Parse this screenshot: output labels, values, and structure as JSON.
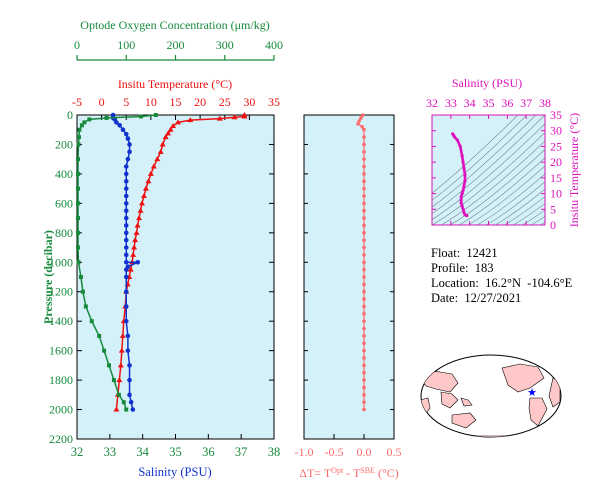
{
  "float_info": {
    "float_line": "Float:  12421",
    "profile_line": "Profile:  183",
    "location_line": "Location:  16.2°N  -104.6°E",
    "date_line": "Date:  12/27/2021"
  },
  "colors": {
    "oxygen": "#168a3a",
    "temperature": "#ee1111",
    "salinity": "#1133cc",
    "delta_t": "#ff6a6a",
    "ts_panel": "#dd11bb",
    "panel_fill": "#d4f1f9",
    "map_land": "#ffc8c8"
  },
  "chart_data": [
    {
      "type": "line",
      "title": "",
      "ylabel": "Pressure (decibar)",
      "y_ticks": [
        "0",
        "200",
        "400",
        "600",
        "800",
        "1000",
        "1200",
        "1400",
        "1600",
        "1800",
        "2000",
        "2200"
      ],
      "ylim": [
        0,
        2200
      ],
      "y_reversed": true,
      "grid": false,
      "axes": {
        "salinity": {
          "label": "Salinity (PSU)",
          "position": "bottom",
          "ticks": [
            "32",
            "33",
            "34",
            "35",
            "36",
            "37",
            "38"
          ],
          "range": [
            32,
            38
          ]
        },
        "temperature": {
          "label": "Insitu Temperature (°C)",
          "position": "top",
          "ticks": [
            "-5",
            "0",
            "5",
            "10",
            "15",
            "20",
            "25",
            "30",
            "35"
          ],
          "range": [
            -5,
            35
          ]
        },
        "oxygen": {
          "label": "Optode Oxygen Concentration (μm/kg)",
          "position": "top (outer)",
          "ticks": [
            "0",
            "100",
            "200",
            "300",
            "400"
          ],
          "range": [
            0,
            400
          ]
        }
      },
      "series": [
        {
          "axis": "temperature",
          "marker": "triangle",
          "color": "#ee1111",
          "points": [
            [
              29.0,
              0
            ],
            [
              29.0,
              10
            ],
            [
              27.0,
              15
            ],
            [
              24.0,
              25
            ],
            [
              18.0,
              35
            ],
            [
              15.5,
              50
            ],
            [
              14.5,
              75
            ],
            [
              14.0,
              100
            ],
            [
              13.5,
              125
            ],
            [
              13.0,
              150
            ],
            [
              12.4,
              200
            ],
            [
              12.0,
              250
            ],
            [
              11.3,
              300
            ],
            [
              10.6,
              350
            ],
            [
              10.0,
              400
            ],
            [
              9.5,
              450
            ],
            [
              9.0,
              500
            ],
            [
              8.6,
              550
            ],
            [
              8.2,
              600
            ],
            [
              7.9,
              650
            ],
            [
              7.6,
              700
            ],
            [
              7.3,
              750
            ],
            [
              7.1,
              800
            ],
            [
              6.8,
              850
            ],
            [
              6.6,
              900
            ],
            [
              6.4,
              950
            ],
            [
              6.2,
              1000
            ],
            [
              5.9,
              1050
            ],
            [
              5.6,
              1100
            ],
            [
              5.3,
              1150
            ],
            [
              5.0,
              1200
            ],
            [
              4.8,
              1300
            ],
            [
              4.5,
              1400
            ],
            [
              4.3,
              1500
            ],
            [
              4.1,
              1600
            ],
            [
              3.9,
              1700
            ],
            [
              3.6,
              1800
            ],
            [
              3.3,
              1900
            ],
            [
              3.0,
              2000
            ]
          ]
        },
        {
          "axis": "salinity",
          "marker": "circle",
          "color": "#1133cc",
          "points": [
            [
              33.1,
              0
            ],
            [
              33.1,
              10
            ],
            [
              33.1,
              20
            ],
            [
              33.15,
              30
            ],
            [
              33.2,
              50
            ],
            [
              33.3,
              70
            ],
            [
              33.4,
              100
            ],
            [
              33.5,
              130
            ],
            [
              33.55,
              160
            ],
            [
              33.6,
              200
            ],
            [
              33.6,
              250
            ],
            [
              33.55,
              300
            ],
            [
              33.5,
              350
            ],
            [
              33.5,
              400
            ],
            [
              33.5,
              450
            ],
            [
              33.5,
              500
            ],
            [
              33.5,
              550
            ],
            [
              33.5,
              600
            ],
            [
              33.5,
              650
            ],
            [
              33.5,
              700
            ],
            [
              33.5,
              750
            ],
            [
              33.5,
              800
            ],
            [
              33.5,
              850
            ],
            [
              33.5,
              900
            ],
            [
              33.5,
              950
            ],
            [
              33.5,
              1000
            ],
            [
              33.85,
              1000
            ],
            [
              33.55,
              1030
            ],
            [
              33.5,
              1050
            ],
            [
              33.5,
              1100
            ],
            [
              33.5,
              1200
            ],
            [
              33.5,
              1300
            ],
            [
              33.5,
              1400
            ],
            [
              33.55,
              1500
            ],
            [
              33.55,
              1600
            ],
            [
              33.6,
              1700
            ],
            [
              33.6,
              1800
            ],
            [
              33.6,
              1900
            ],
            [
              33.65,
              1950
            ],
            [
              33.7,
              2000
            ]
          ]
        },
        {
          "axis": "oxygen",
          "marker": "square",
          "color": "#168a3a",
          "points": [
            [
              160,
              0
            ],
            [
              130,
              10
            ],
            [
              60,
              20
            ],
            [
              25,
              30
            ],
            [
              15,
              50
            ],
            [
              10,
              70
            ],
            [
              5,
              100
            ],
            [
              4,
              150
            ],
            [
              3,
              200
            ],
            [
              2,
              300
            ],
            [
              2,
              400
            ],
            [
              2,
              500
            ],
            [
              2,
              600
            ],
            [
              2,
              700
            ],
            [
              2,
              800
            ],
            [
              2,
              900
            ],
            [
              3,
              1000
            ],
            [
              8,
              1100
            ],
            [
              12,
              1200
            ],
            [
              18,
              1300
            ],
            [
              30,
              1400
            ],
            [
              45,
              1500
            ],
            [
              55,
              1600
            ],
            [
              65,
              1700
            ],
            [
              75,
              1800
            ],
            [
              85,
              1900
            ],
            [
              95,
              1950
            ],
            [
              100,
              2000
            ]
          ]
        }
      ]
    },
    {
      "type": "line",
      "xlabel": "ΔT= T^Opt - T^SBE (°C)",
      "x_ticks": [
        "-1.0",
        "-0.5",
        "0.0",
        "0.5"
      ],
      "xlim": [
        -1.0,
        0.5
      ],
      "ylim": [
        0,
        2200
      ],
      "y_reversed": true,
      "series": [
        {
          "name": "ΔT",
          "marker": "circle",
          "color": "#ff6a6a",
          "points": [
            [
              -0.02,
              0
            ],
            [
              -0.05,
              20
            ],
            [
              -0.08,
              40
            ],
            [
              -0.1,
              60
            ],
            [
              -0.03,
              80
            ],
            [
              0.0,
              100
            ],
            [
              0.0,
              150
            ],
            [
              0.0,
              200
            ],
            [
              0.0,
              250
            ],
            [
              0.0,
              300
            ],
            [
              0.0,
              350
            ],
            [
              0.0,
              400
            ],
            [
              0.0,
              450
            ],
            [
              0.0,
              500
            ],
            [
              0.0,
              550
            ],
            [
              0.0,
              600
            ],
            [
              0.0,
              650
            ],
            [
              0.0,
              700
            ],
            [
              0.0,
              750
            ],
            [
              0.0,
              800
            ],
            [
              0.0,
              850
            ],
            [
              0.0,
              900
            ],
            [
              0.0,
              950
            ],
            [
              0.0,
              1000
            ],
            [
              0.0,
              1050
            ],
            [
              0.0,
              1100
            ],
            [
              0.0,
              1150
            ],
            [
              0.0,
              1200
            ],
            [
              0.0,
              1250
            ],
            [
              0.0,
              1300
            ],
            [
              0.0,
              1350
            ],
            [
              0.0,
              1400
            ],
            [
              0.0,
              1450
            ],
            [
              0.0,
              1500
            ],
            [
              0.0,
              1550
            ],
            [
              0.0,
              1600
            ],
            [
              0.0,
              1650
            ],
            [
              0.0,
              1700
            ],
            [
              0.0,
              1750
            ],
            [
              0.0,
              1800
            ],
            [
              0.0,
              1850
            ],
            [
              0.0,
              1900
            ],
            [
              0.0,
              1950
            ],
            [
              0.0,
              2000
            ]
          ]
        }
      ]
    },
    {
      "type": "scatter",
      "title": "Salinity (PSU)",
      "xlabel": "Salinity (PSU)",
      "ylabel": "Insitu Temperature (°C)",
      "x_ticks": [
        "32",
        "33",
        "34",
        "35",
        "36",
        "37",
        "38"
      ],
      "xlim": [
        32,
        38
      ],
      "y_ticks": [
        "0",
        "5",
        "10",
        "15",
        "20",
        "25",
        "30",
        "35"
      ],
      "ylim": [
        0,
        35
      ],
      "contours": "density isopycnals (unlabeled)",
      "series": [
        {
          "name": "T-S",
          "color": "#dd11bb",
          "points": [
            [
              33.1,
              29
            ],
            [
              33.15,
              28.5
            ],
            [
              33.2,
              28
            ],
            [
              33.35,
              27
            ],
            [
              33.5,
              25
            ],
            [
              33.6,
              22
            ],
            [
              33.65,
              20
            ],
            [
              33.7,
              18
            ],
            [
              33.75,
              16
            ],
            [
              33.75,
              14
            ],
            [
              33.7,
              12.5
            ],
            [
              33.65,
              11
            ],
            [
              33.6,
              10
            ],
            [
              33.55,
              9
            ],
            [
              33.55,
              8
            ],
            [
              33.55,
              7
            ],
            [
              33.6,
              6
            ],
            [
              33.65,
              5
            ],
            [
              33.7,
              4
            ],
            [
              33.75,
              3.3
            ],
            [
              33.85,
              3
            ]
          ]
        }
      ]
    }
  ]
}
